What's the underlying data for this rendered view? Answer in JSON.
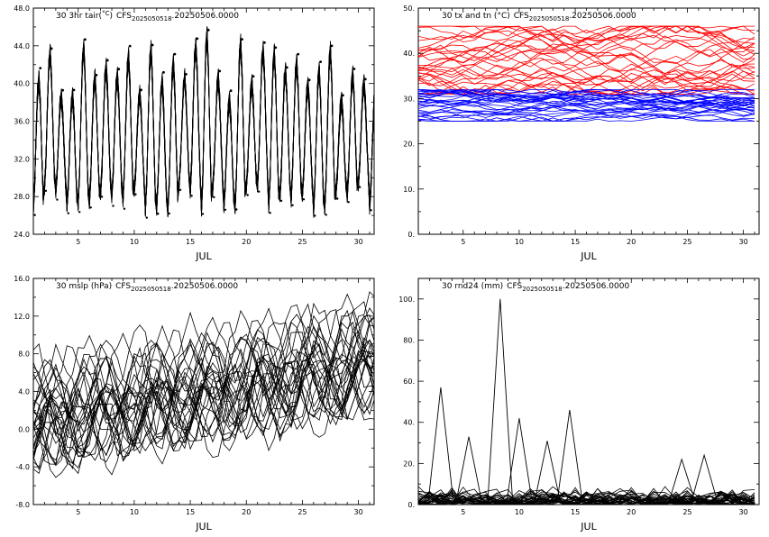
{
  "chart_data": [
    {
      "type": "line",
      "title_prefix": "30 3hr tair(",
      "title_unit": "°C",
      "title_close": ")",
      "title_source_base": "CFS",
      "title_source_sub": "2025050518",
      "title_source_tail": ".20250506.0000",
      "xlabel": "JUL",
      "x_tick_labels": [
        "5",
        "10",
        "15",
        "20",
        "25",
        "30"
      ],
      "x_ticks": [
        5,
        10,
        15,
        20,
        25,
        30
      ],
      "xlim": [
        1,
        31.4
      ],
      "y_tick_labels": [
        "24.0",
        "28.0",
        "32.0",
        "36.0",
        "40.0",
        "44.0",
        "48.0"
      ],
      "y_ticks": [
        24,
        28,
        32,
        36,
        40,
        44,
        48
      ],
      "ylim": [
        24,
        48
      ],
      "n_members": 30,
      "diurnal_cycle": {
        "min_range": [
          25.5,
          28.5
        ],
        "max_range": [
          39,
          46.5
        ],
        "points_per_day": 8
      },
      "series_color": "#000000",
      "markers": true
    },
    {
      "type": "line",
      "title_prefix": "30 tx and tn (",
      "title_unit": "°C",
      "title_close": ")",
      "title_source_base": "CFS",
      "title_source_sub": "2025050518",
      "title_source_tail": ".20250506.0000",
      "xlabel": "JUL",
      "x_tick_labels": [
        "5",
        "10",
        "15",
        "20",
        "25",
        "30"
      ],
      "x_ticks": [
        5,
        10,
        15,
        20,
        25,
        30
      ],
      "xlim": [
        1,
        31.4
      ],
      "y_tick_labels": [
        "0.",
        "10.",
        "20.",
        "30.",
        "40.",
        "50."
      ],
      "y_ticks": [
        0,
        10,
        20,
        30,
        40,
        50
      ],
      "ylim": [
        0,
        50
      ],
      "n_members": 30,
      "tx_range": [
        31,
        46
      ],
      "tn_range": [
        25,
        32
      ],
      "tx_color": "#ff0000",
      "tn_color": "#0000ff"
    },
    {
      "type": "line",
      "title_prefix": "30 mslp (",
      "title_unit": "hPa",
      "title_close": ")",
      "title_source_base": "CFS",
      "title_source_sub": "2025050518",
      "title_source_tail": ".20250506.0000",
      "xlabel": "JUL",
      "x_tick_labels": [
        "5",
        "10",
        "15",
        "20",
        "25",
        "30"
      ],
      "x_ticks": [
        5,
        10,
        15,
        20,
        25,
        30
      ],
      "xlim": [
        1,
        31.4
      ],
      "y_tick_labels": [
        "-8.0",
        "-4.0",
        "0.0",
        "4.0",
        "8.0",
        "12.0",
        "16.0"
      ],
      "y_ticks": [
        -8,
        -4,
        0,
        4,
        8,
        12,
        16
      ],
      "ylim": [
        -8,
        16
      ],
      "n_members": 30,
      "trend_start": 1.5,
      "trend_end": 7.5,
      "spread": 4,
      "series_color": "#000000"
    },
    {
      "type": "line",
      "title_prefix": "30 rnd24 (",
      "title_unit": "mm",
      "title_close": ")",
      "title_source_base": "CFS",
      "title_source_sub": "2025050518",
      "title_source_tail": ".20250506.0000",
      "xlabel": "JUL",
      "x_tick_labels": [
        "5",
        "10",
        "15",
        "20",
        "25",
        "30"
      ],
      "x_ticks": [
        5,
        10,
        15,
        20,
        25,
        30
      ],
      "xlim": [
        1,
        31.4
      ],
      "y_tick_labels": [
        "0.",
        "20.",
        "40.",
        "60.",
        "80.",
        "100."
      ],
      "y_ticks": [
        0,
        20,
        40,
        60,
        80,
        100
      ],
      "ylim": [
        0,
        110
      ],
      "n_members": 30,
      "notable_peaks": [
        {
          "day": 3,
          "value": 57
        },
        {
          "day": 5.5,
          "value": 33
        },
        {
          "day": 8.3,
          "value": 100
        },
        {
          "day": 10,
          "value": 42
        },
        {
          "day": 12.5,
          "value": 31
        },
        {
          "day": 14.5,
          "value": 46
        },
        {
          "day": 24.5,
          "value": 22
        },
        {
          "day": 26.5,
          "value": 24
        }
      ],
      "series_color": "#000000"
    }
  ]
}
